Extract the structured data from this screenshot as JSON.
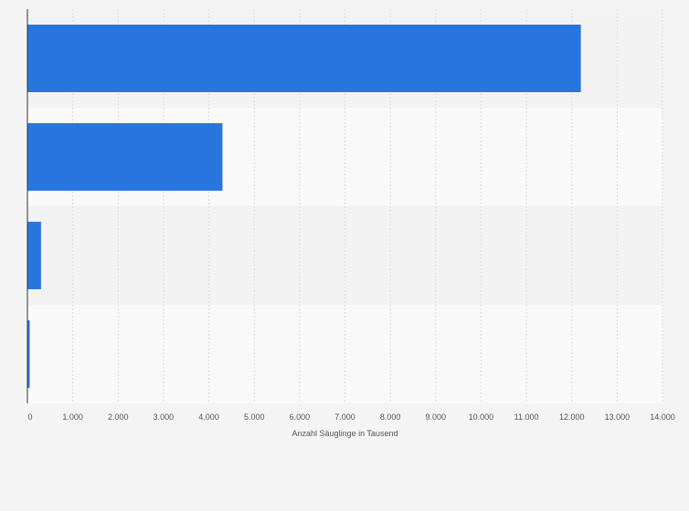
{
  "chart_data": {
    "type": "bar",
    "orientation": "horizontal",
    "categories": [
      "",
      "",
      "",
      ""
    ],
    "values": [
      12200,
      4300,
      300,
      50
    ],
    "xlabel": "Anzahl Säuglinge in Tausend",
    "xlim": [
      0,
      14000
    ],
    "xticks": [
      0,
      1000,
      2000,
      3000,
      4000,
      5000,
      6000,
      7000,
      8000,
      9000,
      10000,
      11000,
      12000,
      13000,
      14000
    ],
    "xtick_labels": [
      "0",
      "1.000",
      "2.000",
      "3.000",
      "4.000",
      "5.000",
      "6.000",
      "7.000",
      "8.000",
      "9.000",
      "10.000",
      "11.000",
      "12.000",
      "13.000",
      "14.000"
    ],
    "grid": true,
    "colors": {
      "bar": "#2876dd",
      "band_odd": "#f2f2f2",
      "band_even": "#f9f9f9",
      "grid": "#dcdcdc",
      "axis": "#333333"
    }
  }
}
